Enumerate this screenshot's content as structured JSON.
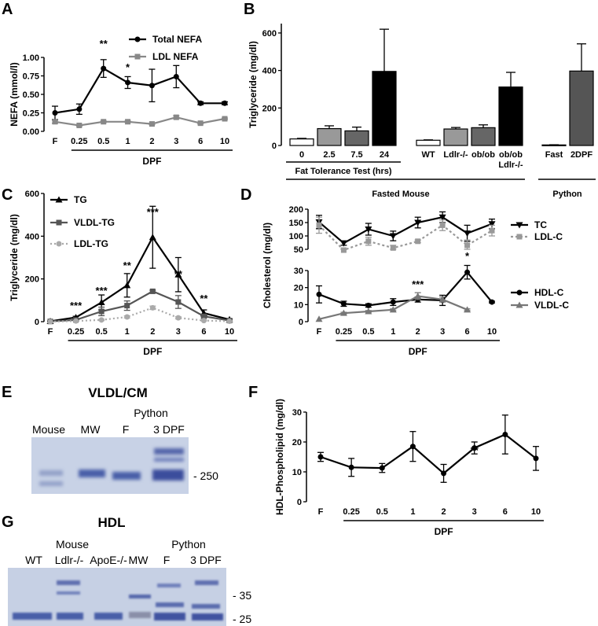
{
  "chart_data": [
    {
      "id": "A",
      "panel_label": "A",
      "type": "line",
      "categories": [
        "F",
        "0.25",
        "0.5",
        "1",
        "2",
        "3",
        "6",
        "10"
      ],
      "xlabel": "DPF",
      "ylabel": "NEFA (mmol/l)",
      "ylim": [
        0,
        1.0
      ],
      "yticks": [
        "0.00",
        "0.25",
        "0.50",
        "0.75",
        "1.00"
      ],
      "series": [
        {
          "name": "Total NEFA",
          "marker": "circle",
          "color": "#000000",
          "values": [
            0.25,
            0.3,
            0.85,
            0.66,
            0.62,
            0.74,
            0.38,
            0.38
          ],
          "errors": [
            0.09,
            0.07,
            0.12,
            0.08,
            0.22,
            0.15,
            0.02,
            0.02
          ]
        },
        {
          "name": "LDL NEFA",
          "marker": "square",
          "color": "#888888",
          "values": [
            0.13,
            0.08,
            0.13,
            0.13,
            0.1,
            0.19,
            0.11,
            0.17
          ],
          "errors": [
            0.02,
            0.01,
            0.01,
            0.01,
            0.01,
            0.02,
            0.01,
            0.01
          ]
        }
      ],
      "annotations": [
        {
          "text": "**",
          "category": "0.5"
        },
        {
          "text": "*",
          "category": "1"
        }
      ]
    },
    {
      "id": "B",
      "panel_label": "B",
      "type": "bar",
      "categories": [
        "0",
        "2.5",
        "7.5",
        "24",
        "WT",
        "Ldlr-/-",
        "ob/ob",
        "ob/ob Ldlr-/-",
        "Fast",
        "2DPF"
      ],
      "values": [
        35,
        90,
        78,
        395,
        28,
        88,
        95,
        312,
        3,
        397
      ],
      "errors": [
        3,
        15,
        20,
        225,
        2,
        8,
        15,
        78,
        1,
        145
      ],
      "colors": [
        "#ffffff",
        "#999999",
        "#666666",
        "#000000",
        "#ffffff",
        "#999999",
        "#666666",
        "#000000",
        "#ffffff",
        "#555555"
      ],
      "ylabel": "Triglyceride (mg/dl)",
      "ylim": [
        0,
        650
      ],
      "yticks": [
        "0",
        "200",
        "400",
        "600"
      ],
      "group_labels": [
        "Fat Tolerance Test (hrs)",
        "Fasted Mouse",
        "Python"
      ]
    },
    {
      "id": "C",
      "panel_label": "C",
      "type": "line",
      "categories": [
        "F",
        "0.25",
        "0.5",
        "1",
        "2",
        "3",
        "6",
        "10"
      ],
      "xlabel": "DPF",
      "ylabel": "Triglyceride (mg/dl)",
      "ylim": [
        0,
        600
      ],
      "yticks": [
        "0",
        "200",
        "400",
        "600"
      ],
      "series": [
        {
          "name": "TG",
          "marker": "triangle",
          "color": "#000000",
          "values": [
            2,
            20,
            90,
            170,
            395,
            220,
            40,
            10
          ],
          "errors": [
            1,
            5,
            35,
            55,
            145,
            80,
            15,
            3
          ]
        },
        {
          "name": "VLDL-TG",
          "marker": "square",
          "color": "#555555",
          "values": [
            1,
            8,
            48,
            75,
            142,
            92,
            25,
            5
          ],
          "errors": [
            0,
            3,
            20,
            22,
            5,
            30,
            8,
            2
          ]
        },
        {
          "name": "LDL-TG",
          "marker": "circle",
          "color": "#aaaaaa",
          "values": [
            0,
            3,
            8,
            22,
            65,
            18,
            5,
            2
          ],
          "errors": [
            0,
            1,
            3,
            5,
            8,
            5,
            2,
            1
          ]
        }
      ],
      "annotations": [
        {
          "text": "***",
          "category": "0.25"
        },
        {
          "text": "***",
          "category": "0.5"
        },
        {
          "text": "**",
          "category": "1"
        },
        {
          "text": "***",
          "category": "2"
        },
        {
          "text": "**",
          "category": "3"
        },
        {
          "text": "**",
          "category": "6"
        }
      ]
    },
    {
      "id": "D",
      "panel_label": "D",
      "type": "line",
      "categories": [
        "F",
        "0.25",
        "0.5",
        "1",
        "2",
        "3",
        "6",
        "10"
      ],
      "xlabel": "DPF",
      "ylabel": "Cholesterol (mg/dl)",
      "upper_ylim": [
        50,
        200
      ],
      "upper_yticks": [
        "50",
        "100",
        "150",
        "200"
      ],
      "lower_ylim": [
        0,
        30
      ],
      "lower_yticks": [
        "0",
        "10",
        "20",
        "30"
      ],
      "upper_series": [
        {
          "name": "TC",
          "marker": "triangle-down",
          "color": "#000000",
          "values": [
            152,
            73,
            125,
            100,
            150,
            170,
            110,
            145
          ],
          "errors": [
            25,
            8,
            22,
            18,
            20,
            20,
            30,
            18
          ]
        },
        {
          "name": "LDL-C",
          "marker": "square",
          "color": "#999999",
          "values": [
            140,
            47,
            80,
            55,
            80,
            140,
            65,
            120
          ],
          "errors": [
            30,
            5,
            15,
            10,
            5,
            20,
            20,
            20
          ]
        }
      ],
      "lower_series": [
        {
          "name": "HDL-C",
          "marker": "circle",
          "color": "#000000",
          "values": [
            16,
            10.5,
            9.5,
            11.5,
            13,
            12.5,
            29,
            11.5
          ],
          "errors": [
            5,
            1.5,
            1,
            2,
            1.5,
            3,
            4,
            0.5
          ]
        },
        {
          "name": "VLDL-C",
          "marker": "triangle",
          "color": "#777777",
          "values": [
            1.5,
            5,
            6,
            7,
            15,
            13,
            7,
            null
          ],
          "errors": [
            0,
            0.5,
            0.5,
            0.5,
            2,
            1.5,
            0.5,
            0
          ]
        }
      ],
      "annotations": [
        {
          "text": "***",
          "category": "2"
        },
        {
          "text": "*",
          "category": "6"
        }
      ]
    },
    {
      "id": "F",
      "panel_label": "F",
      "type": "line",
      "categories": [
        "F",
        "0.25",
        "0.5",
        "1",
        "2",
        "3",
        "6",
        "10"
      ],
      "xlabel": "DPF",
      "ylabel": "HDL-Phospholipid (mg/dl)",
      "ylim": [
        0,
        30
      ],
      "yticks": [
        "0",
        "10",
        "20",
        "30"
      ],
      "series": [
        {
          "name": "HDL-Phospholipid",
          "marker": "circle",
          "color": "#000000",
          "values": [
            15,
            11.5,
            11.3,
            18.5,
            9.5,
            18,
            22.5,
            14.5
          ],
          "errors": [
            1.5,
            3,
            1.5,
            5,
            3,
            2,
            6.5,
            4
          ]
        }
      ],
      "annotations": [
        {
          "text": "**",
          "category": "3"
        }
      ]
    }
  ],
  "gel_E": {
    "panel_label": "E",
    "title": "VLDL/CM",
    "group_label": "Python",
    "lanes": [
      "Mouse",
      "MW",
      "F",
      "3 DPF"
    ],
    "marker": "- 250"
  },
  "gel_G": {
    "panel_label": "G",
    "title": "HDL",
    "group_labels": [
      "Mouse",
      "Python"
    ],
    "lanes": [
      "WT",
      "Ldlr-/-",
      "ApoE-/-",
      "MW",
      "F",
      "3 DPF"
    ],
    "markers": [
      "- 35",
      "- 25"
    ]
  }
}
